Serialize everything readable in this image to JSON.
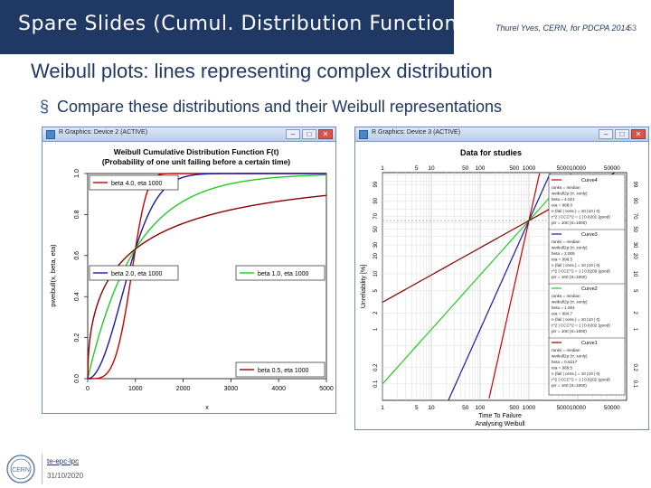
{
  "slide": {
    "title": "Spare Slides (Cumul. Distribution Function)",
    "author": "Thurel Yves, CERN, for PDCPA 2014",
    "page_number": "53",
    "subtitle": "Weibull plots: lines representing complex distribution",
    "bullet_mark": "§",
    "bullet": "Compare these distributions and their Weibull representations",
    "footer_link": "te-epc-lpc",
    "footer_date": "31/10/2020",
    "logo_text": "CERN"
  },
  "left_window": {
    "title": "R Graphics: Device 2 (ACTIVE)",
    "buttons": [
      "–",
      "□",
      "✕"
    ]
  },
  "right_window": {
    "title": "R Graphics: Device 3 (ACTIVE)",
    "buttons": [
      "–",
      "□",
      "✕"
    ]
  },
  "colors": {
    "title_bg": "#1f3864",
    "accent": "#1f3864",
    "series_red": "#cc0000",
    "series_blue": "#1a1aa0",
    "series_green": "#22cc22",
    "series_darkred": "#8b0000"
  },
  "chart_data": [
    {
      "type": "line",
      "title": "Weibull Cumulative Distribution Function F(t)",
      "subtitle": "(Probability of one unit failing before a certain time)",
      "xlabel": "x",
      "ylabel": "pweibull(x, beta, eta)",
      "xlim": [
        0,
        5000
      ],
      "ylim": [
        0,
        1
      ],
      "x_ticks": [
        "0",
        "1000",
        "2000",
        "3000",
        "4000",
        "5000"
      ],
      "y_ticks": [
        "0.0",
        "0.2",
        "0.4",
        "0.6",
        "0.8",
        "1.0"
      ],
      "grid": false,
      "series": [
        {
          "name": "beta 4.0, eta 1000",
          "beta": 4.0,
          "eta": 1000,
          "color": "#cc0000"
        },
        {
          "name": "beta 2.0, eta 1000",
          "beta": 2.0,
          "eta": 1000,
          "color": "#1a1aa0"
        },
        {
          "name": "beta 1.0, eta 1000",
          "beta": 1.0,
          "eta": 1000,
          "color": "#22cc22"
        },
        {
          "name": "beta 0.5, eta 1000",
          "beta": 0.5,
          "eta": 1000,
          "color": "#8b0000"
        }
      ],
      "legend_placement": [
        "top-left",
        "middle-left",
        "middle-right",
        "bottom-right"
      ]
    },
    {
      "type": "line",
      "title": "Data for studies",
      "xlabel": "Time To Failure",
      "xlabel2": "Analysing Weibull",
      "ylabel": "Unreliability [%]",
      "x_ticks_bottom": [
        "1",
        "5",
        "10",
        "50",
        "100",
        "500",
        "1000",
        "5000",
        "10000",
        "50000"
      ],
      "x_ticks_top": [
        "1",
        "5",
        "10",
        "50",
        "100",
        "500",
        "1000",
        "5000",
        "10000",
        "50000"
      ],
      "y_ticks": [
        "0.1",
        "0.2",
        "1",
        "2",
        "5",
        "10",
        "20",
        "30",
        "50",
        "70",
        "90",
        "99"
      ],
      "grid": true,
      "series": [
        {
          "beta": 4.0,
          "eta": 1000,
          "color": "#cc0000"
        },
        {
          "beta": 2.0,
          "eta": 1000,
          "color": "#1a1aa0"
        },
        {
          "beta": 1.0,
          "eta": 1000,
          "color": "#22cc22"
        },
        {
          "beta": 0.5,
          "eta": 1000,
          "color": "#8b0000"
        }
      ],
      "legend": [
        {
          "name": "Curve4",
          "lines": [
            "ranks = median",
            "weibull2p (rr, xonly)",
            "beta = 4.021",
            "eta = 998.0",
            "n (fail | cens.) = 10 (10 | 0)",
            "r^2 | CCC^2 = 1 | 0.8201 (good)",
            "prr = 100 (S=1000)"
          ]
        },
        {
          "name": "Curve3",
          "lines": [
            "ranks = median",
            "weibull2p (rr, xonly)",
            "beta = 2.006",
            "eta = 996.5",
            "n (fail | cens.) = 10 (10 | 0)",
            "r^2 | CCC^2 = 1 | 0.8209 (good)",
            "prr = 100 (S=1000)"
          ]
        },
        {
          "name": "Curve2",
          "lines": [
            "ranks = median",
            "weibull2p (rr, xonly)",
            "beta = 1.004",
            "eta = 994.7",
            "n (fail | cens.) = 10 (10 | 0)",
            "r^2 | CCC^2 = 1 | 0.8202 (good)",
            "prr = 100 (S=1000)"
          ]
        },
        {
          "name": "Curve1",
          "lines": [
            "ranks = median",
            "weibull2p (rr, xonly)",
            "beta = 0.5217",
            "eta = 989.5",
            "n (fail | cens.) = 10 (10 | 0)",
            "r^2 | CCC^2 = 1 | 0.8202 (good)",
            "prr = 100 (S=1000)"
          ]
        }
      ]
    }
  ]
}
